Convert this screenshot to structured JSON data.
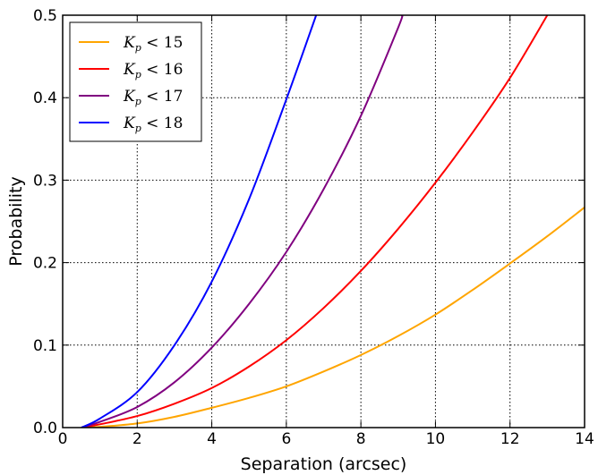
{
  "chart_data": {
    "type": "line",
    "title": "",
    "xlabel": "Separation (arcsec)",
    "ylabel": "Probability",
    "xlim": [
      0,
      14
    ],
    "ylim": [
      0,
      0.5
    ],
    "xticks": [
      0,
      2,
      4,
      6,
      8,
      10,
      12,
      14
    ],
    "yticks": [
      0.0,
      0.1,
      0.2,
      0.3,
      0.4,
      0.5
    ],
    "xtick_labels": [
      "0",
      "2",
      "4",
      "6",
      "8",
      "10",
      "12",
      "14"
    ],
    "ytick_labels": [
      "0.0",
      "0.1",
      "0.2",
      "0.3",
      "0.4",
      "0.5"
    ],
    "grid": true,
    "grid_style": "dotted",
    "legend_position": "top-left",
    "series": [
      {
        "name": "K_p < 15",
        "legend_symbol": "K",
        "legend_subscript": "p",
        "legend_rest": " < 15",
        "color": "#ffa500",
        "x": [
          0.5,
          1,
          2,
          3,
          4,
          5,
          6,
          7,
          8,
          9,
          10,
          11,
          12,
          13,
          14
        ],
        "y": [
          0.0,
          0.001,
          0.005,
          0.013,
          0.024,
          0.036,
          0.05,
          0.068,
          0.088,
          0.111,
          0.137,
          0.167,
          0.199,
          0.232,
          0.267
        ]
      },
      {
        "name": "K_p < 16",
        "legend_symbol": "K",
        "legend_subscript": "p",
        "legend_rest": " < 16",
        "color": "#ff0000",
        "x": [
          0.5,
          1,
          2,
          3,
          4,
          5,
          6,
          7,
          8,
          9,
          10,
          11,
          12,
          13
        ],
        "y": [
          0.0,
          0.004,
          0.014,
          0.029,
          0.048,
          0.074,
          0.106,
          0.145,
          0.19,
          0.241,
          0.297,
          0.358,
          0.424,
          0.5
        ]
      },
      {
        "name": "K_p < 17",
        "legend_symbol": "K",
        "legend_subscript": "p",
        "legend_rest": " < 17",
        "color": "#800080",
        "x": [
          0.5,
          1,
          2,
          3,
          4,
          5,
          6,
          7,
          8,
          9,
          9.1
        ],
        "y": [
          0.0,
          0.007,
          0.025,
          0.055,
          0.097,
          0.15,
          0.213,
          0.289,
          0.378,
          0.485,
          0.5
        ]
      },
      {
        "name": "K_p < 18",
        "legend_symbol": "K",
        "legend_subscript": "p",
        "legend_rest": " < 18",
        "color": "#0000ff",
        "x": [
          0.5,
          1,
          2,
          3,
          4,
          5,
          6,
          6.8
        ],
        "y": [
          0.0,
          0.011,
          0.043,
          0.1,
          0.177,
          0.277,
          0.398,
          0.5
        ]
      }
    ]
  }
}
